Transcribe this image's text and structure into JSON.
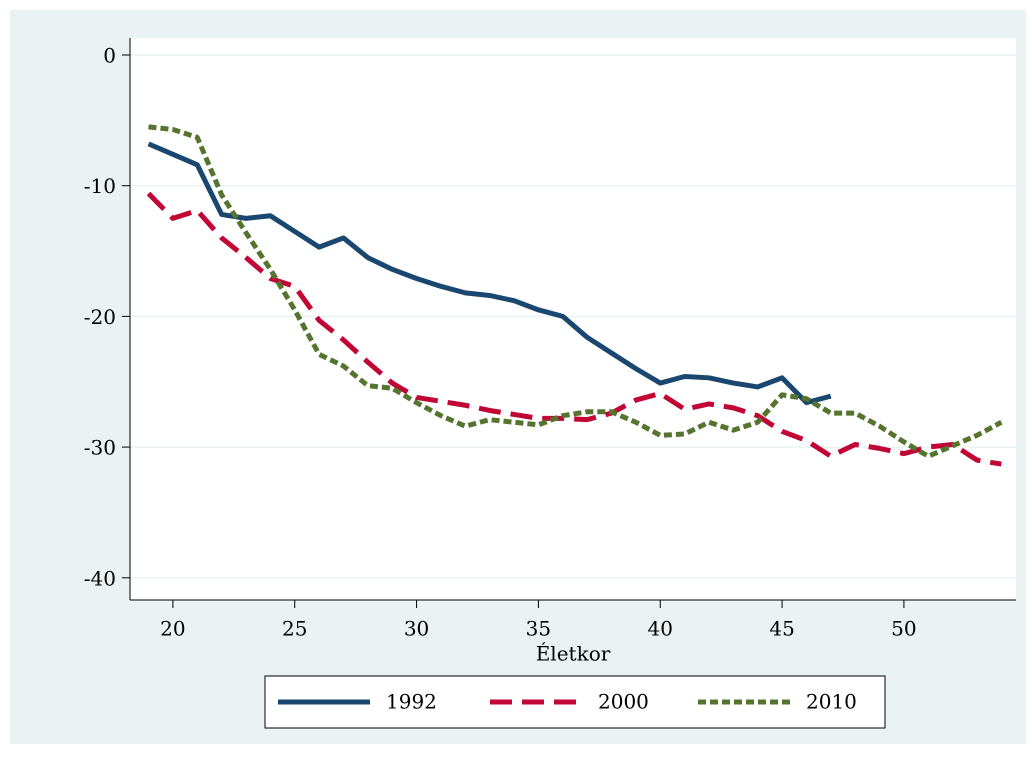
{
  "chart_data": {
    "type": "line",
    "x_label": "Életkor",
    "x": [
      19,
      20,
      21,
      22,
      23,
      24,
      25,
      26,
      27,
      28,
      29,
      30,
      31,
      32,
      33,
      34,
      35,
      36,
      37,
      38,
      39,
      40,
      41,
      42,
      43,
      44,
      45,
      46,
      47,
      48,
      49,
      50,
      51,
      52,
      53,
      54
    ],
    "series": [
      {
        "name": "1992",
        "color": "#1a476f",
        "style": "solid",
        "values": [
          -6.8,
          -7.6,
          -8.4,
          -12.2,
          -12.5,
          -12.3,
          -13.5,
          -14.7,
          -14.0,
          -15.5,
          -16.4,
          -17.1,
          -17.7,
          -18.2,
          -18.4,
          -18.8,
          -19.5,
          -20.0,
          -21.6,
          -22.8,
          -24.0,
          -25.1,
          -24.6,
          -24.7,
          -25.1,
          -25.4,
          -24.7,
          -26.6,
          -26.1,
          null,
          null,
          null,
          null,
          null,
          null,
          null
        ]
      },
      {
        "name": "2000",
        "color": "#c10534",
        "style": "long-dash",
        "values": [
          -10.6,
          -12.5,
          -11.9,
          -14.0,
          -15.5,
          -17.1,
          -17.7,
          -20.3,
          -21.8,
          -23.5,
          -25.1,
          -26.2,
          -26.5,
          -26.8,
          -27.2,
          -27.5,
          -27.8,
          -27.8,
          -27.9,
          -27.4,
          -26.4,
          -25.9,
          -27.1,
          -26.7,
          -27.0,
          -27.6,
          -28.8,
          -29.5,
          -30.7,
          -29.8,
          -30.1,
          -30.5,
          -30.0,
          -29.8,
          -31.0,
          -31.3
        ]
      },
      {
        "name": "2010",
        "color": "#55752f",
        "style": "short-dash",
        "values": [
          -5.5,
          -5.7,
          -6.3,
          -10.7,
          -13.6,
          -16.4,
          -19.5,
          -22.9,
          -23.8,
          -25.3,
          -25.5,
          -26.6,
          -27.6,
          -28.4,
          -27.9,
          -28.1,
          -28.3,
          -27.6,
          -27.3,
          -27.3,
          -28.1,
          -29.1,
          -29.0,
          -28.1,
          -28.7,
          -28.1,
          -26.0,
          -26.3,
          -27.4,
          -27.4,
          -28.4,
          -29.6,
          -30.7,
          -29.9,
          -29.1,
          -28.1
        ]
      }
    ],
    "xlim": [
      18.24,
      54.6
    ],
    "xticks": [
      20,
      25,
      30,
      35,
      40,
      45,
      50
    ],
    "ylim": [
      -41.7,
      1.3
    ],
    "yticks": [
      0,
      -10,
      -20,
      -30,
      -40
    ],
    "grid": true,
    "legend": "bottom"
  }
}
